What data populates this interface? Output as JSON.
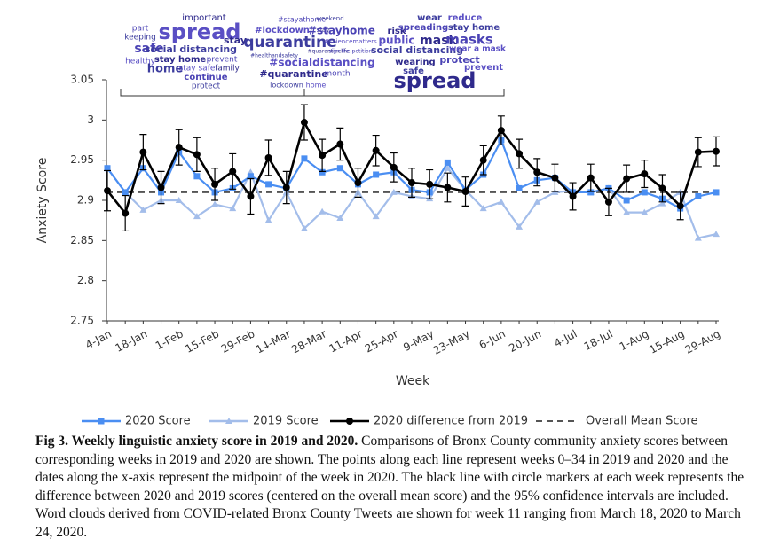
{
  "chart_data": {
    "type": "line",
    "y_label": "Anxiety Score",
    "x_label": "Week",
    "categories": [
      "4-Jan",
      null,
      "18-Jan",
      null,
      "1-Feb",
      null,
      "15-Feb",
      null,
      "29-Feb",
      null,
      "14-Mar",
      null,
      "28-Mar",
      null,
      "11-Apr",
      null,
      "25-Apr",
      null,
      "9-May",
      null,
      "23-May",
      null,
      "6-Jun",
      null,
      "20-Jun",
      null,
      "4-Jul",
      null,
      "18-Jul",
      null,
      "1-Aug",
      null,
      "15-Aug",
      null,
      "29-Aug"
    ],
    "ylim": [
      2.75,
      3.05
    ],
    "yticks": [
      2.75,
      2.8,
      2.85,
      2.9,
      2.95,
      3,
      3.05
    ],
    "series": [
      {
        "name": "2020 Score",
        "color": "#4a8ef2",
        "marker": "square",
        "values": [
          2.94,
          2.91,
          2.94,
          2.91,
          2.96,
          2.93,
          2.91,
          2.915,
          2.93,
          2.92,
          2.915,
          2.952,
          2.935,
          2.94,
          2.92,
          2.932,
          2.935,
          2.913,
          2.91,
          2.947,
          2.913,
          2.932,
          2.975,
          2.915,
          2.925,
          2.928,
          2.91,
          2.91,
          2.915,
          2.9,
          2.91,
          2.902,
          2.89,
          2.905,
          2.91
        ]
      },
      {
        "name": "2019 Score",
        "color": "#a3bdea",
        "marker": "triangle",
        "values": [
          2.94,
          2.91,
          2.888,
          2.9,
          2.9,
          2.88,
          2.895,
          2.89,
          2.935,
          2.875,
          2.91,
          2.865,
          2.886,
          2.878,
          2.91,
          2.88,
          2.91,
          2.905,
          2.902,
          2.94,
          2.913,
          2.89,
          2.898,
          2.867,
          2.898,
          2.91,
          2.912,
          2.91,
          2.915,
          2.885,
          2.885,
          2.896,
          2.91,
          2.853,
          2.858
        ]
      },
      {
        "name": "2020 difference from 2019",
        "color": "#000000",
        "marker": "circle",
        "values": [
          2.912,
          2.884,
          2.96,
          2.916,
          2.966,
          2.957,
          2.92,
          2.936,
          2.905,
          2.953,
          2.916,
          2.997,
          2.956,
          2.97,
          2.922,
          2.962,
          2.941,
          2.922,
          2.92,
          2.916,
          2.911,
          2.95,
          2.987,
          2.958,
          2.935,
          2.928,
          2.905,
          2.928,
          2.898,
          2.927,
          2.933,
          2.915,
          2.893,
          2.96,
          2.961
        ],
        "errors": [
          0.025,
          0.022,
          0.022,
          0.02,
          0.022,
          0.021,
          0.02,
          0.022,
          0.022,
          0.022,
          0.02,
          0.022,
          0.02,
          0.02,
          0.018,
          0.019,
          0.018,
          0.018,
          0.018,
          0.018,
          0.018,
          0.018,
          0.018,
          0.018,
          0.017,
          0.017,
          0.017,
          0.017,
          0.017,
          0.017,
          0.017,
          0.017,
          0.017,
          0.018,
          0.018
        ]
      }
    ],
    "mean_line": {
      "name": "Overall Mean Score",
      "value": 2.91,
      "color": "#555555"
    },
    "word_clouds": [
      [
        "important",
        "part",
        "keeping",
        "spread",
        "stay",
        "safe",
        "social distancing",
        "healthy",
        "stay home",
        "prevent",
        "home",
        "stay safe",
        "family",
        "continue",
        "protect"
      ],
      [
        "#stayathome",
        "weekend",
        "#lockdown",
        "stay",
        "#stayhome",
        "quarantine",
        "#sciencematters",
        "#quarantinelife",
        "sign the petition",
        "#healthandsafety",
        "#socialdistancing",
        "#quarantine",
        "month",
        "lockdown",
        "home"
      ],
      [
        "wear",
        "reduce",
        "risk",
        "spreading",
        "stay home",
        "public",
        "mask",
        "masks",
        "social distancing",
        "wear a mask",
        "wearing",
        "protect",
        "safe",
        "prevent",
        "spread"
      ]
    ]
  },
  "caption": {
    "title": "Fig 3. Weekly linguistic anxiety score in 2019 and 2020.",
    "text": "Comparisons of Bronx County community anxiety scores between corresponding weeks in 2019 and 2020 are shown. The points along each line represent weeks 0–34 in 2019 and 2020 and the dates along the x-axis represent the midpoint of the week in 2020. The black line with circle markers at each week represents the difference between 2020 and 2019 scores (centered on the overall mean score) and the 95% confidence intervals are included. Word clouds derived from COVID-related Bronx County Tweets are shown for week 11 ranging from March 18, 2020 to March 24, 2020."
  }
}
